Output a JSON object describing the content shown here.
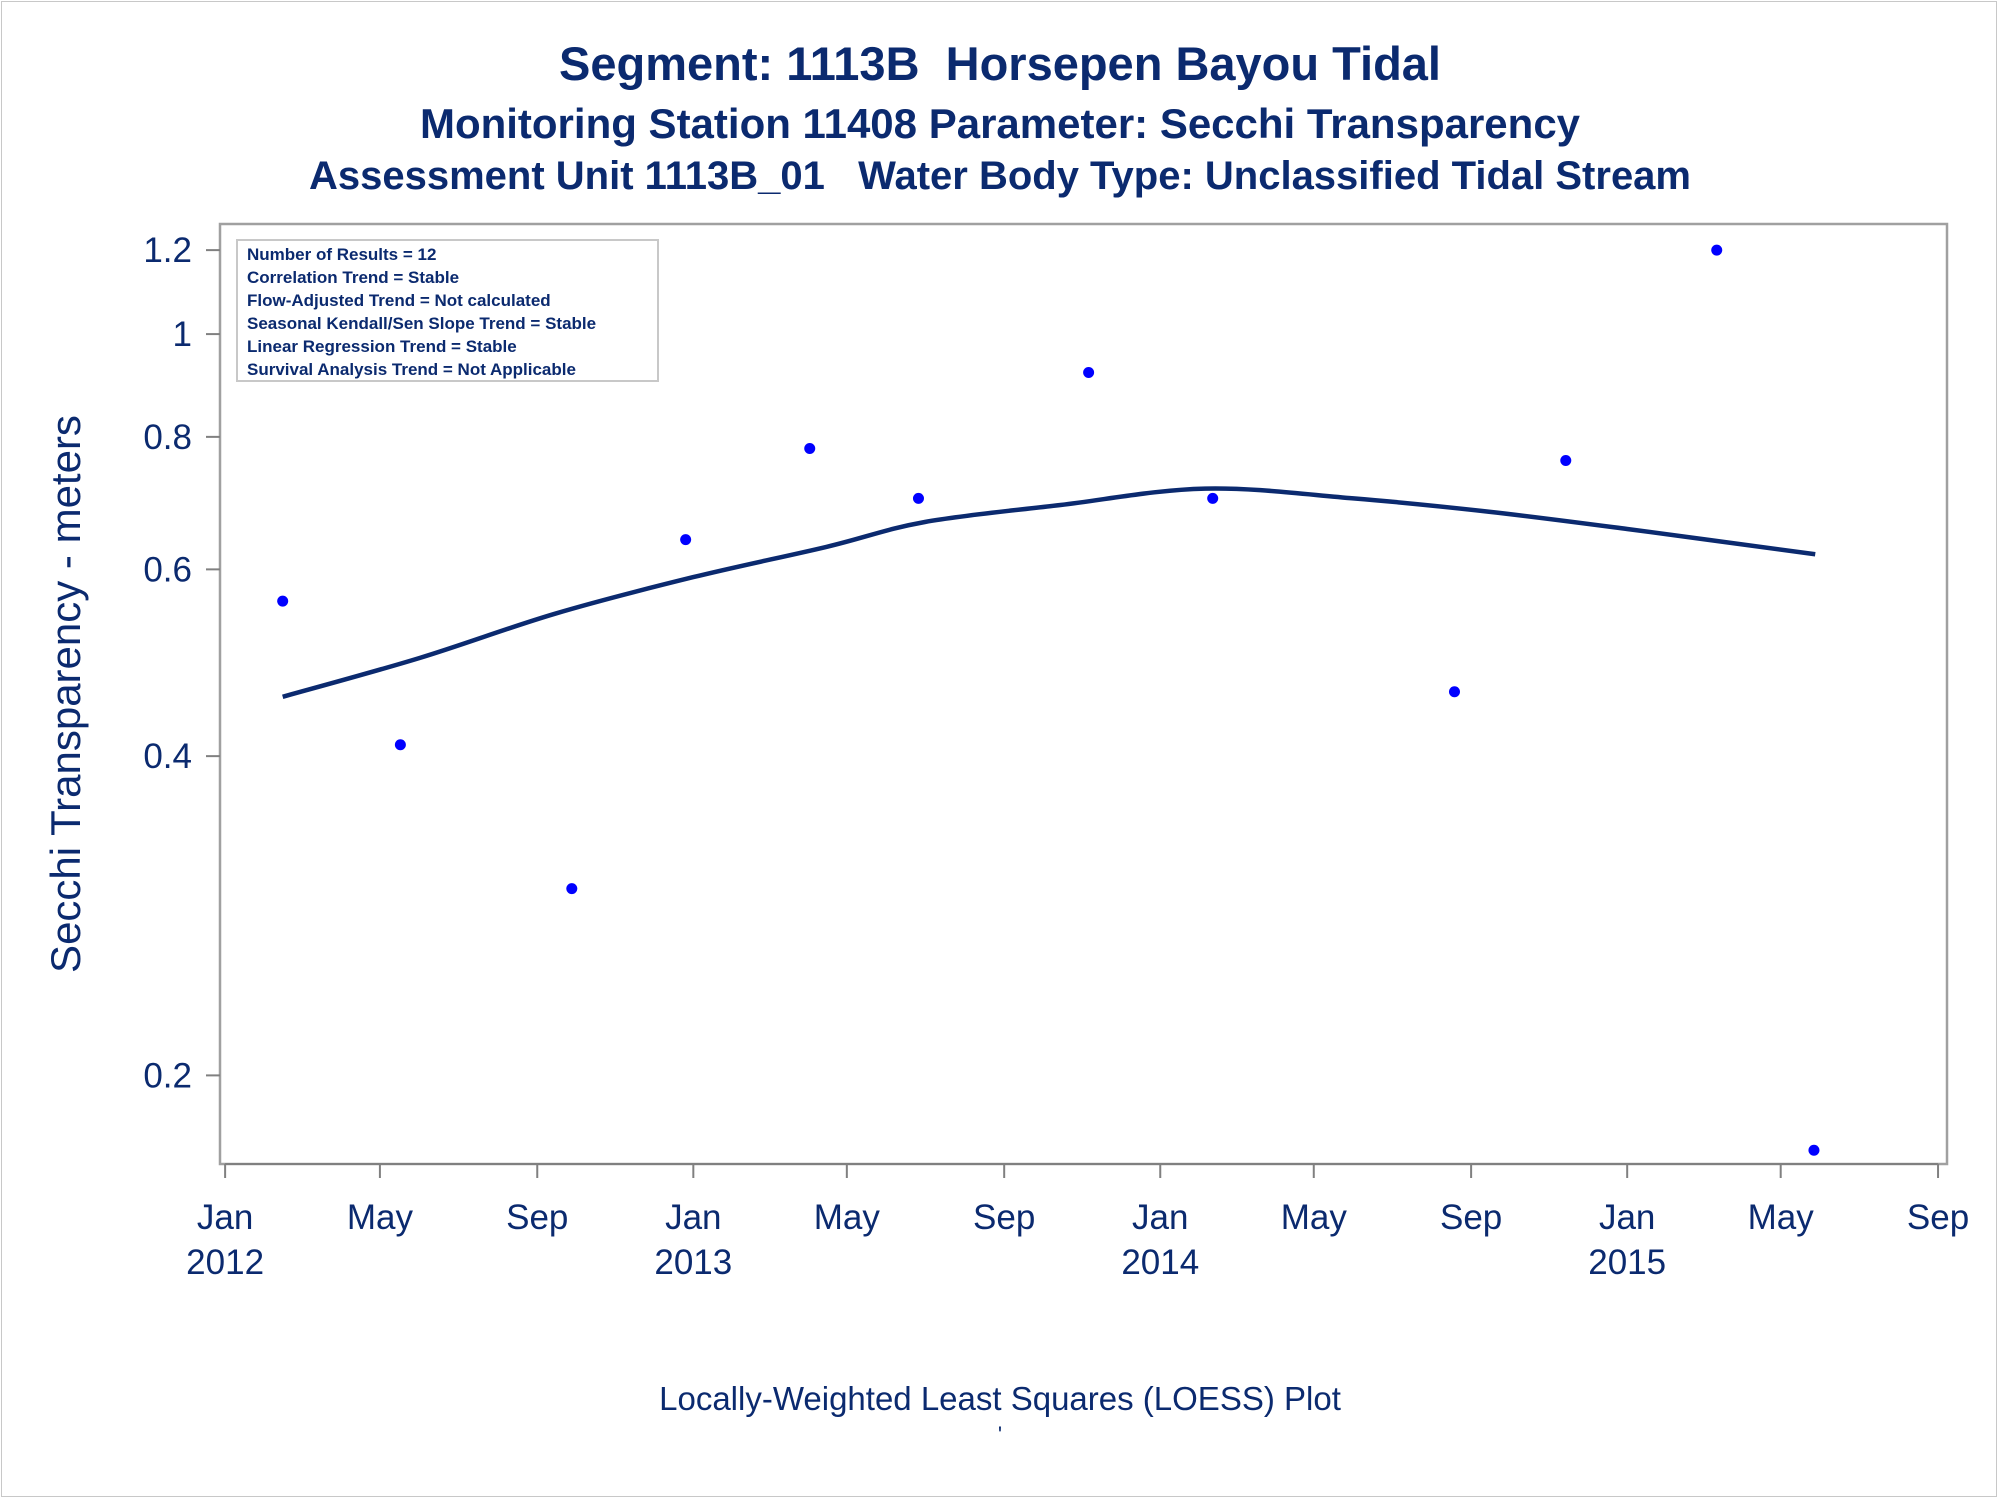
{
  "chart_data": {
    "type": "scatter",
    "title": "Segment: 1113B  Horsepen Bayou Tidal",
    "subtitle": "Monitoring Station 11408 Parameter: Secchi Transparency",
    "subtitle2": "Assessment Unit 1113B_01   Water Body Type: Unclassified Tidal Stream",
    "ylabel": "Secchi Transparency - meters",
    "xlabel": "",
    "footnote": "Locally-Weighted Least Squares (LOESS) Plot",
    "footnote_mark": "'",
    "y_scale": "log",
    "ylim": [
      0.165,
      1.27
    ],
    "xlim": [
      "2011-12-28",
      "2015-09-08"
    ],
    "grid": false,
    "y_ticks": [
      {
        "value": 0.2,
        "label": "0.2"
      },
      {
        "value": 0.4,
        "label": "0.4"
      },
      {
        "value": 0.6,
        "label": "0.6"
      },
      {
        "value": 0.8,
        "label": "0.8"
      },
      {
        "value": 1.0,
        "label": "1"
      },
      {
        "value": 1.2,
        "label": "1.2"
      }
    ],
    "x_ticks": [
      {
        "date": "2012-01-01",
        "month": "Jan",
        "year": "2012"
      },
      {
        "date": "2012-05-01",
        "month": "May",
        "year": ""
      },
      {
        "date": "2012-09-01",
        "month": "Sep",
        "year": ""
      },
      {
        "date": "2013-01-01",
        "month": "Jan",
        "year": "2013"
      },
      {
        "date": "2013-05-01",
        "month": "May",
        "year": ""
      },
      {
        "date": "2013-09-01",
        "month": "Sep",
        "year": ""
      },
      {
        "date": "2014-01-01",
        "month": "Jan",
        "year": "2014"
      },
      {
        "date": "2014-05-01",
        "month": "May",
        "year": ""
      },
      {
        "date": "2014-09-01",
        "month": "Sep",
        "year": ""
      },
      {
        "date": "2015-01-01",
        "month": "Jan",
        "year": "2015"
      },
      {
        "date": "2015-05-01",
        "month": "May",
        "year": ""
      },
      {
        "date": "2015-09-01",
        "month": "Sep",
        "year": ""
      }
    ],
    "stats_box": {
      "placement": "top-left",
      "lines": [
        "Number of Results = 12",
        "Correlation Trend = Stable",
        "Flow-Adjusted Trend = Not calculated",
        "Seasonal Kendall/Sen Slope Trend = Stable",
        "Linear Regression Trend = Stable",
        "Survival Analysis Trend = Not Applicable"
      ]
    },
    "series": [
      {
        "type": "scatter",
        "color": "#0000ff",
        "points": [
          {
            "x": "2012-02-15",
            "y": 0.56
          },
          {
            "x": "2012-05-17",
            "y": 0.41
          },
          {
            "x": "2012-09-28",
            "y": 0.3
          },
          {
            "x": "2012-12-26",
            "y": 0.64
          },
          {
            "x": "2013-04-02",
            "y": 0.78
          },
          {
            "x": "2013-06-26",
            "y": 0.7
          },
          {
            "x": "2013-11-06",
            "y": 0.92
          },
          {
            "x": "2014-02-11",
            "y": 0.7
          },
          {
            "x": "2014-08-19",
            "y": 0.46
          },
          {
            "x": "2014-11-14",
            "y": 0.76
          },
          {
            "x": "2015-03-12",
            "y": 1.2
          },
          {
            "x": "2015-05-27",
            "y": 0.17
          }
        ]
      },
      {
        "type": "line",
        "color": "#0b2a6f",
        "points": [
          {
            "x": "2012-02-15",
            "y": 0.455
          },
          {
            "x": "2012-06-01",
            "y": 0.495
          },
          {
            "x": "2012-09-15",
            "y": 0.545
          },
          {
            "x": "2013-01-01",
            "y": 0.59
          },
          {
            "x": "2013-04-15",
            "y": 0.63
          },
          {
            "x": "2013-07-01",
            "y": 0.665
          },
          {
            "x": "2013-10-15",
            "y": 0.69
          },
          {
            "x": "2014-02-05",
            "y": 0.715
          },
          {
            "x": "2014-06-01",
            "y": 0.7
          },
          {
            "x": "2014-09-15",
            "y": 0.68
          },
          {
            "x": "2015-01-01",
            "y": 0.655
          },
          {
            "x": "2015-05-28",
            "y": 0.62
          }
        ]
      }
    ]
  }
}
